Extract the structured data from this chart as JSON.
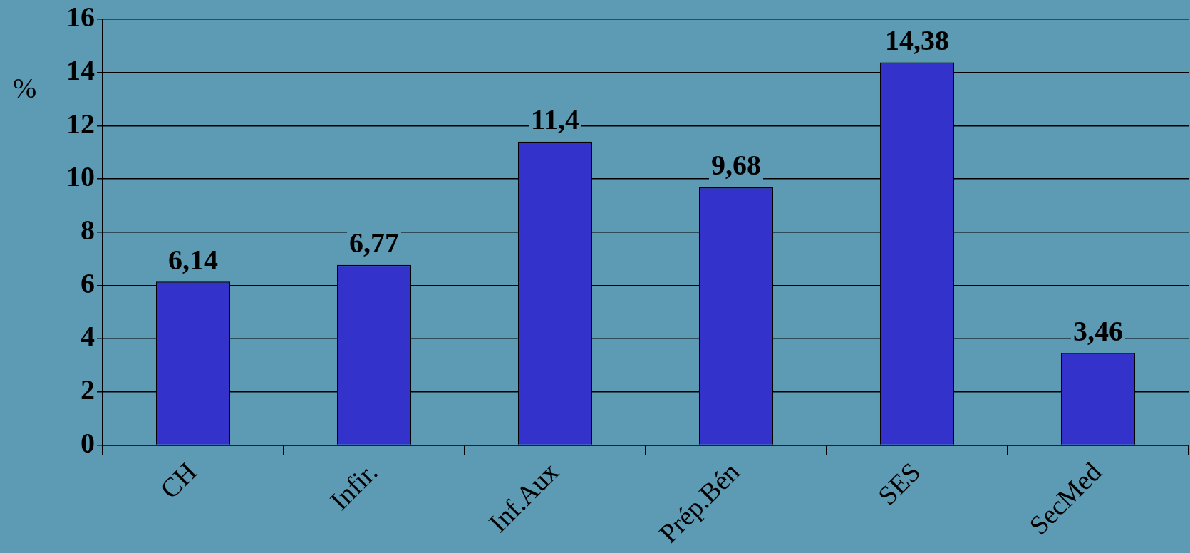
{
  "chart_data": {
    "type": "bar",
    "ylabel": "%",
    "categories": [
      "CH",
      "Infir.",
      "Inf.Aux",
      "Prép.Bén",
      "SES",
      "SecMed"
    ],
    "values": [
      6.14,
      6.77,
      11.4,
      9.68,
      14.38,
      3.46
    ],
    "value_labels": [
      "6,14",
      "6,77",
      "11,4",
      "9,68",
      "14,38",
      "3,46"
    ],
    "color": "#3333cc",
    "ylim": [
      0,
      16
    ],
    "yticks": [
      0,
      2,
      4,
      6,
      8,
      10,
      12,
      14,
      16
    ],
    "grid": "y"
  }
}
